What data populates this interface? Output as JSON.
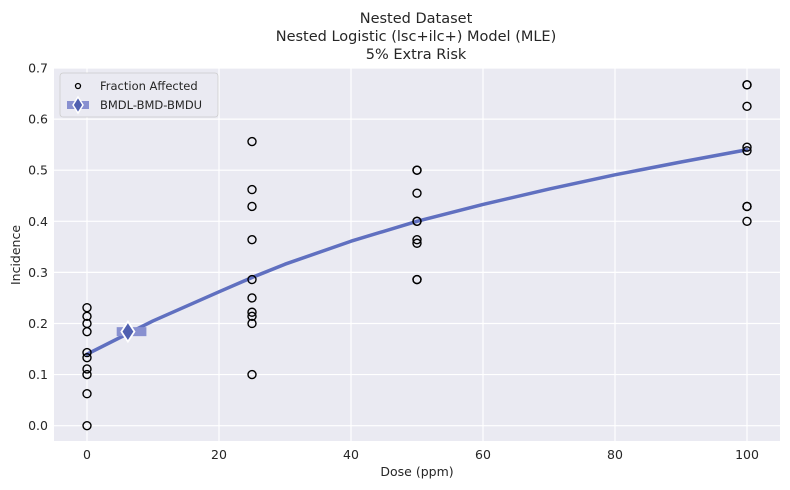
{
  "chart_data": {
    "type": "scatter",
    "title_lines": [
      "Nested Dataset",
      "Nested Logistic (lsc+ilc+) Model (MLE)",
      "5% Extra Risk"
    ],
    "xlabel": "Dose (ppm)",
    "ylabel": "Incidence",
    "xlim": [
      -5,
      105
    ],
    "ylim": [
      -0.03,
      0.7
    ],
    "xticks": [
      0,
      20,
      40,
      60,
      80,
      100
    ],
    "yticks": [
      0.0,
      0.1,
      0.2,
      0.3,
      0.4,
      0.5,
      0.6,
      0.7
    ],
    "grid": true,
    "legend_position": "top-left",
    "background": "#eaeaf2",
    "fit_color": "#6070c0",
    "bmd_color": "#5060b0",
    "bmd_bar_color": "#8890d0",
    "series": [
      {
        "name": "Fraction Affected",
        "kind": "points",
        "points": [
          [
            0,
            0.231
          ],
          [
            0,
            0.214
          ],
          [
            0,
            0.2
          ],
          [
            0,
            0.184
          ],
          [
            0,
            0.143
          ],
          [
            0,
            0.133
          ],
          [
            0,
            0.111
          ],
          [
            0,
            0.1
          ],
          [
            0,
            0.0625
          ],
          [
            0,
            0.0
          ],
          [
            25,
            0.556
          ],
          [
            25,
            0.462
          ],
          [
            25,
            0.429
          ],
          [
            25,
            0.364
          ],
          [
            25,
            0.286
          ],
          [
            25,
            0.25
          ],
          [
            25,
            0.222
          ],
          [
            25,
            0.214
          ],
          [
            25,
            0.2
          ],
          [
            25,
            0.1
          ],
          [
            50,
            0.5
          ],
          [
            50,
            0.5
          ],
          [
            50,
            0.455
          ],
          [
            50,
            0.4
          ],
          [
            50,
            0.4
          ],
          [
            50,
            0.364
          ],
          [
            50,
            0.357
          ],
          [
            50,
            0.286
          ],
          [
            50,
            0.286
          ],
          [
            100,
            0.667
          ],
          [
            100,
            0.667
          ],
          [
            100,
            0.625
          ],
          [
            100,
            0.545
          ],
          [
            100,
            0.538
          ],
          [
            100,
            0.429
          ],
          [
            100,
            0.429
          ],
          [
            100,
            0.4
          ]
        ]
      },
      {
        "name": "",
        "kind": "line",
        "x": [
          0,
          10,
          20,
          25,
          30,
          40,
          50,
          60,
          70,
          80,
          90,
          100
        ],
        "y": [
          0.14,
          0.205,
          0.262,
          0.29,
          0.316,
          0.361,
          0.4,
          0.433,
          0.463,
          0.491,
          0.516,
          0.54
        ]
      },
      {
        "name": "BMDL-BMD-BMDU",
        "kind": "interval",
        "bmdl": 4.5,
        "bmd": 6.2,
        "bmdu": 9.0,
        "y": 0.184
      }
    ]
  }
}
